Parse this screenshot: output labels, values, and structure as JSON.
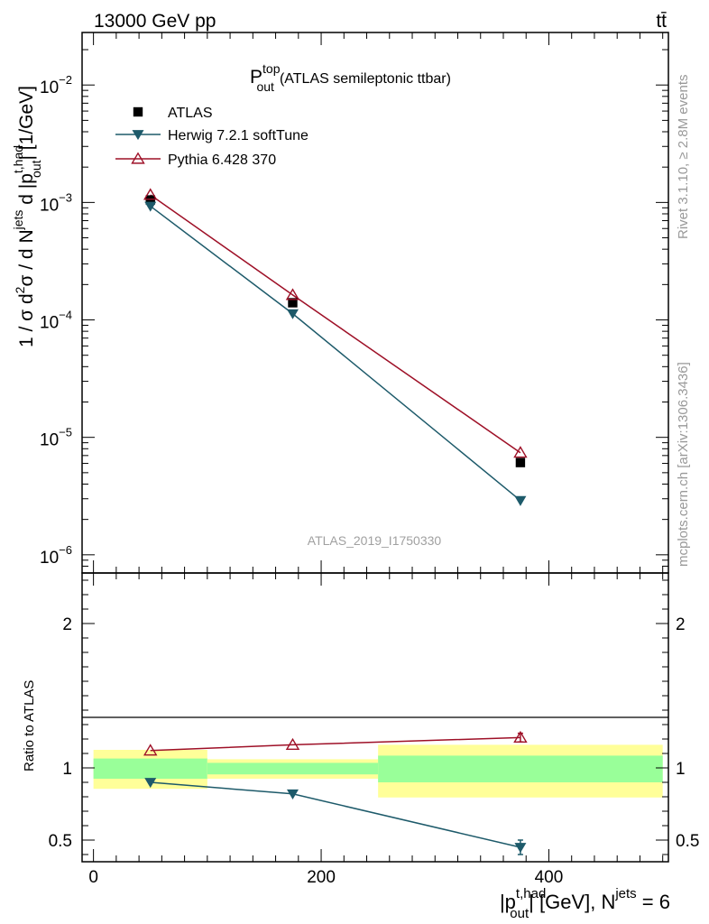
{
  "header": {
    "energy_label": "13000 GeV pp",
    "process_label": "tt̄"
  },
  "side_labels": {
    "rivet": "Rivet 3.1.10, ≥ 2.8M events",
    "mcplots": "mcplots.cern.ch [arXiv:1306.3436]"
  },
  "chart_data": [
    {
      "type": "line",
      "panel": "main",
      "title_main": "P",
      "title_sup": "top",
      "title_sub": "out",
      "title_rest": "(ATLAS semileptonic ttbar)",
      "ylabel": "1 / σ d²σ / d Nʲᵉᵗˢ d |pᵗʴʰᵃᵈ out| [1/GeV]",
      "ylabel_parts": {
        "a": "1 / σ d",
        "b": "2",
        "c": "σ / d N",
        "d": "jets",
        "e": " d |p",
        "f": "t,had",
        "g": "out",
        "h": "| [1/GeV]"
      },
      "yscale": "log",
      "ylim": [
        7e-07,
        0.028
      ],
      "xlim": [
        -10,
        505
      ],
      "ytick_labels": [
        {
          "value": 1e-06,
          "base": "10",
          "exp": "−6"
        },
        {
          "value": 1e-05,
          "base": "10",
          "exp": "−5"
        },
        {
          "value": 0.0001,
          "base": "10",
          "exp": "−4"
        },
        {
          "value": 0.001,
          "base": "10",
          "exp": "−3"
        },
        {
          "value": 0.01,
          "base": "10",
          "exp": "−2"
        }
      ],
      "watermark": "ATLAS_2019_I1750330",
      "legend_position": "top-left",
      "series": [
        {
          "name": "ATLAS",
          "marker": "square",
          "color": "#000000",
          "x": [
            50,
            175,
            375
          ],
          "y": [
            0.00105,
            0.00014,
            6.1e-06
          ]
        },
        {
          "name": "Herwig 7.2.1 softTune",
          "marker": "triangle-down",
          "color": "#1d5a6a",
          "x": [
            50,
            175,
            375
          ],
          "y": [
            0.00093,
            0.000113,
            2.9e-06
          ]
        },
        {
          "name": "Pythia 6.428 370",
          "marker": "triangle-up-open",
          "color": "#9e1027",
          "x": [
            50,
            175,
            375
          ],
          "y": [
            0.00116,
            0.000163,
            7.4e-06
          ]
        }
      ]
    },
    {
      "type": "line",
      "panel": "ratio",
      "ylabel": "Ratio to ATLAS",
      "ylim": [
        0.35,
        2.35
      ],
      "yticks": [
        0.5,
        1,
        2
      ],
      "ytick_labels": [
        "0.5",
        "1",
        "2"
      ],
      "xlim": [
        -10,
        505
      ],
      "xticks": [
        0,
        200,
        400
      ],
      "xtick_labels": [
        "0",
        "200",
        "400"
      ],
      "xlabel_parts": {
        "a": "|p",
        "b": "t,had",
        "c": "out",
        "d": "| [GeV], N",
        "e": "jets",
        "f": " = 6"
      },
      "bins": [
        {
          "x_low": 0,
          "x_high": 100,
          "stat_low": 0.925,
          "stat_high": 1.065,
          "tot_low": 0.855,
          "tot_high": 1.125
        },
        {
          "x_low": 100,
          "x_high": 250,
          "stat_low": 0.955,
          "stat_high": 1.035,
          "tot_low": 0.925,
          "tot_high": 1.06
        },
        {
          "x_low": 250,
          "x_high": 500,
          "stat_low": 0.9,
          "stat_high": 1.085,
          "tot_low": 0.795,
          "tot_high": 1.16
        }
      ],
      "band_colors": {
        "stat": "#99ff99",
        "total": "#ffff99"
      },
      "series": [
        {
          "name": "Herwig 7.2.1 softTune",
          "marker": "triangle-down",
          "color": "#1d5a6a",
          "x": [
            50,
            175,
            375
          ],
          "y": [
            0.9,
            0.82,
            0.45
          ],
          "err": [
            0,
            0,
            0.05
          ]
        },
        {
          "name": "Pythia 6.428 370",
          "marker": "triangle-up-open",
          "color": "#9e1027",
          "x": [
            50,
            175,
            375
          ],
          "y": [
            1.12,
            1.16,
            1.21
          ],
          "err": [
            0,
            0,
            0.03
          ]
        }
      ]
    }
  ]
}
